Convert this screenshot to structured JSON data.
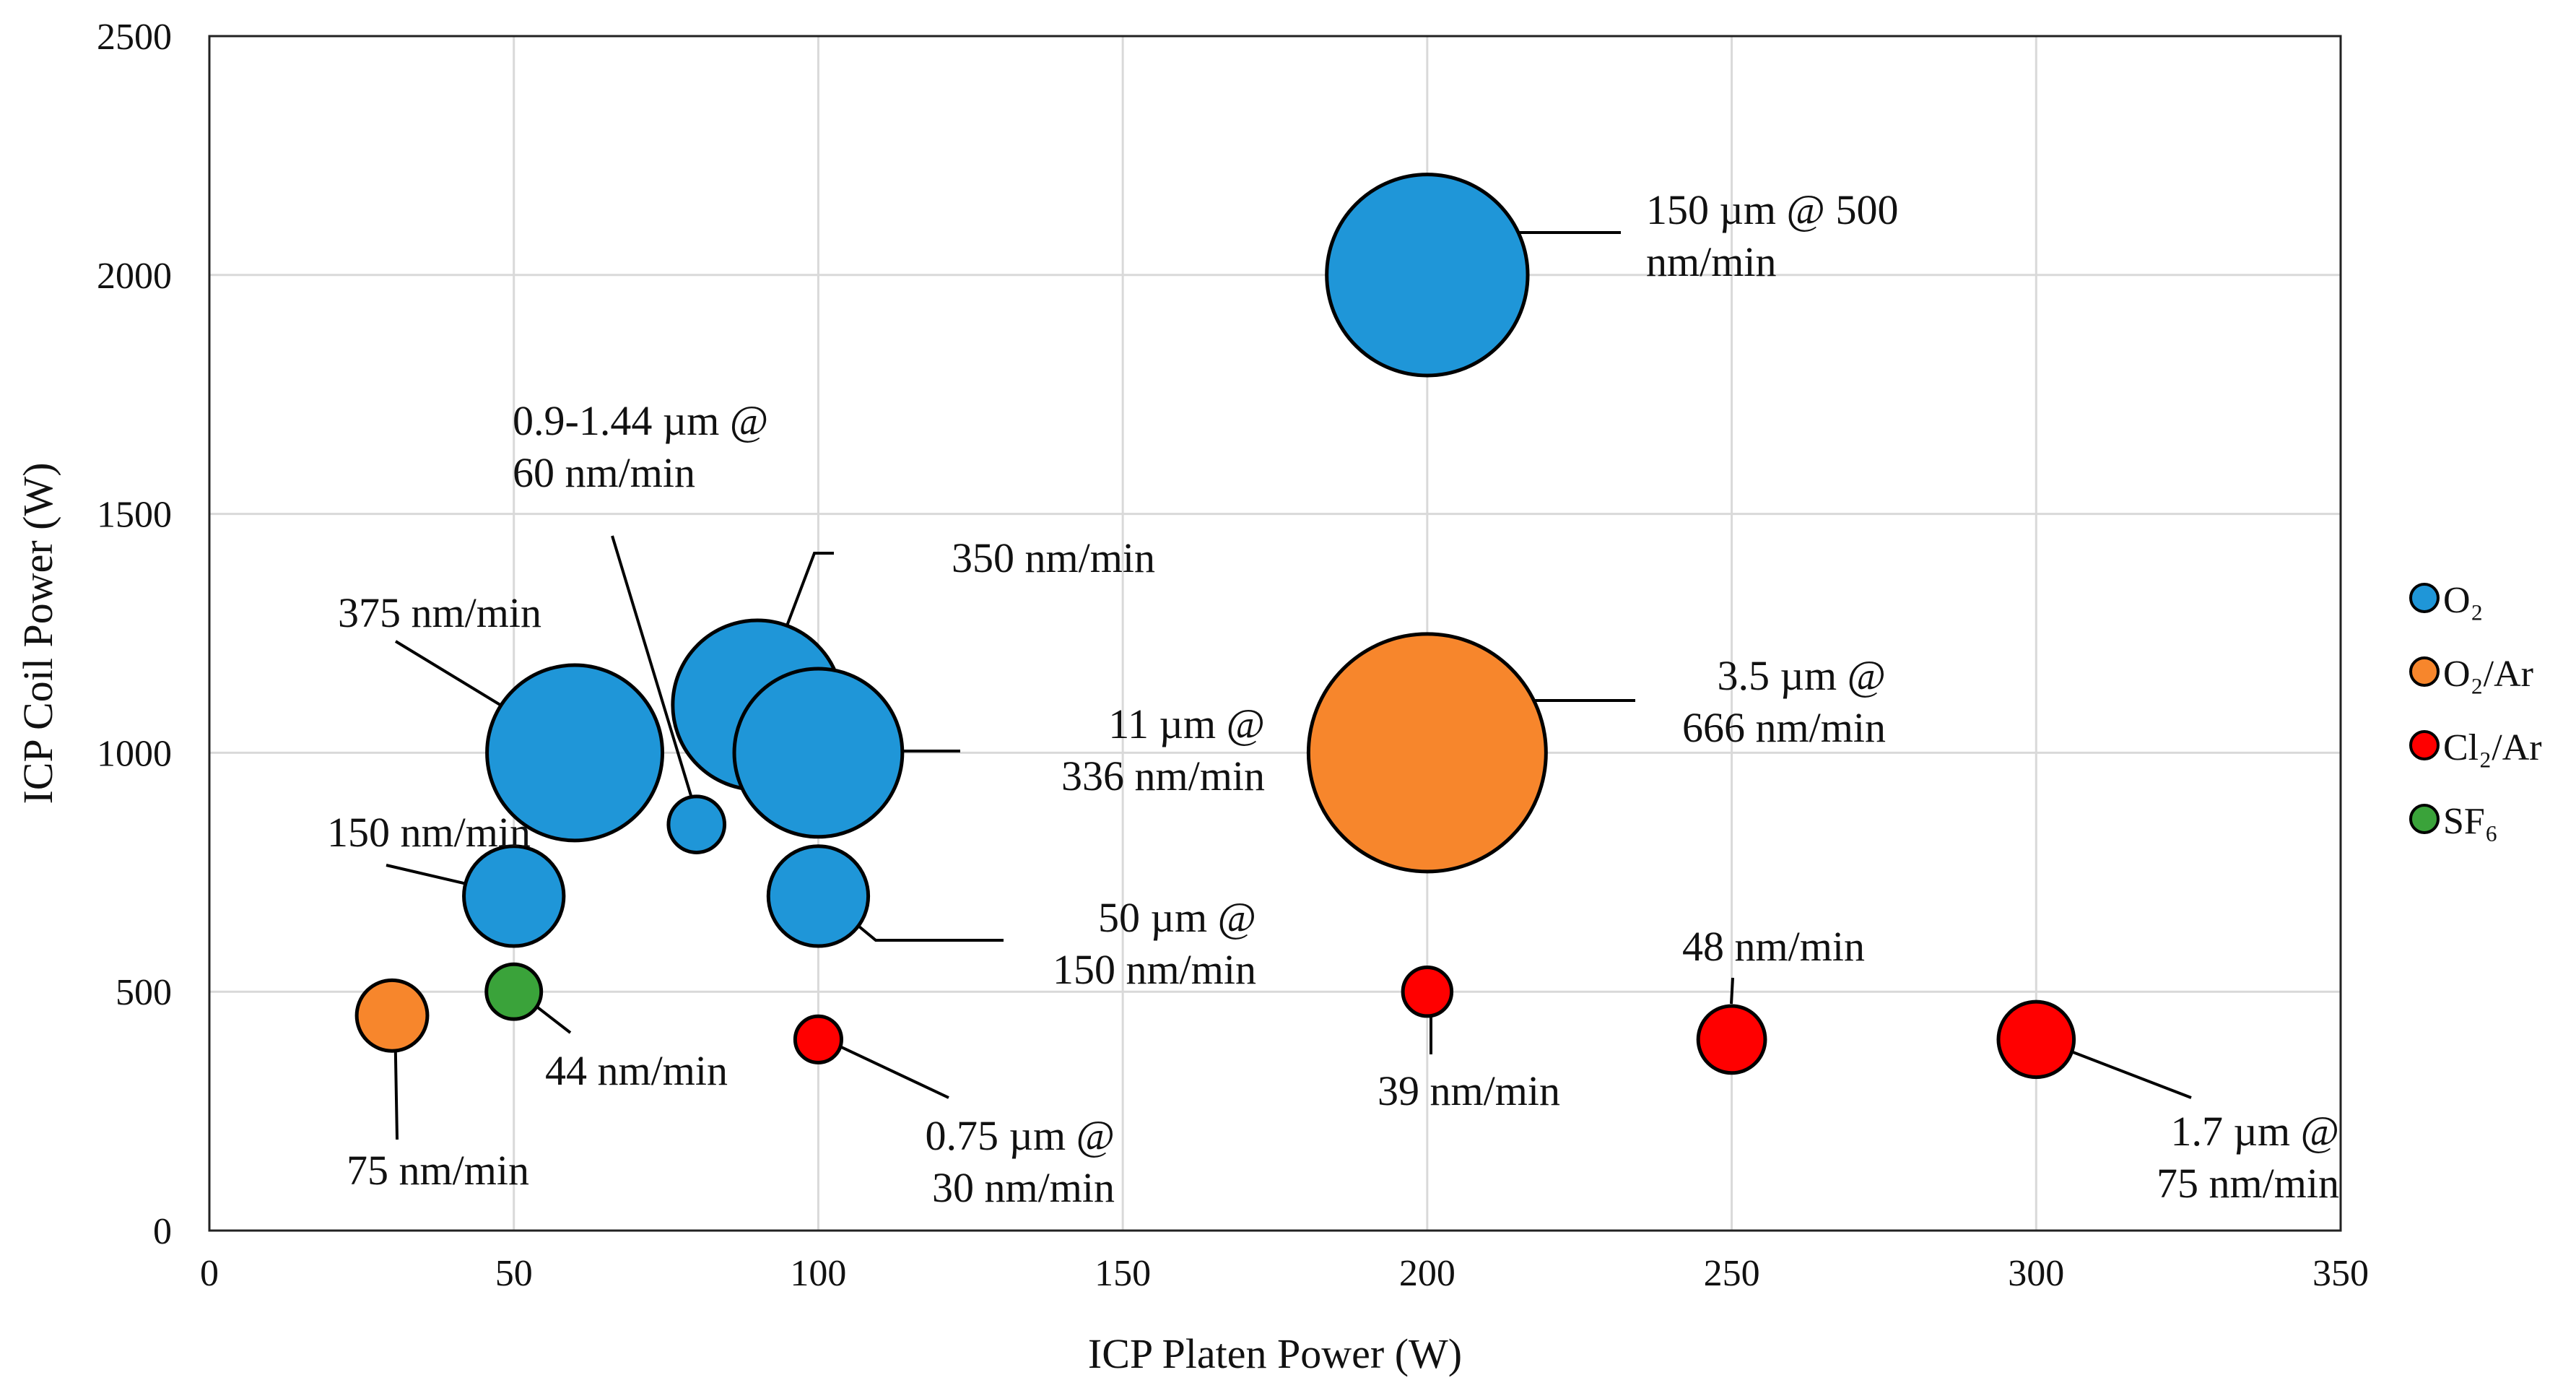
{
  "chart_data": {
    "type": "scatter",
    "subtype": "bubble",
    "title": "",
    "xlabel": "ICP Platen Power (W)",
    "ylabel": "ICP Coil Power (W)",
    "xlim": [
      0,
      350
    ],
    "ylim": [
      0,
      2500
    ],
    "xticks": [
      0,
      50,
      100,
      150,
      200,
      250,
      300,
      350
    ],
    "yticks": [
      0,
      500,
      1000,
      1500,
      2000,
      2500
    ],
    "grid": true,
    "legend_position": "right",
    "series": [
      {
        "name": "O₂",
        "color": "#1f96d8",
        "points": [
          {
            "x": 200,
            "y": 2000,
            "r": 0.165,
            "label": [
              "150 µm @ 500",
              "nm/min"
            ]
          },
          {
            "x": 60,
            "y": 1000,
            "r": 0.144,
            "label": [
              "375 nm/min"
            ]
          },
          {
            "x": 90,
            "y": 1100,
            "r": 0.139,
            "label": [
              "350 nm/min"
            ]
          },
          {
            "x": 100,
            "y": 1000,
            "r": 0.138,
            "label": [
              "11 µm @",
              "336 nm/min"
            ]
          },
          {
            "x": 80,
            "y": 850,
            "r": 0.046,
            "label": [
              "0.9-1.44  µm @",
              "60 nm/min"
            ]
          },
          {
            "x": 50,
            "y": 700,
            "r": 0.082,
            "label": [
              "150 nm/min"
            ]
          },
          {
            "x": 100,
            "y": 700,
            "r": 0.082,
            "label": [
              "50 µm @",
              "150 nm/min"
            ]
          }
        ]
      },
      {
        "name": "O₂/Ar",
        "color": "#f7862c",
        "points": [
          {
            "x": 200,
            "y": 1000,
            "r": 0.195,
            "label": [
              "3.5 µm @",
              "666 nm/min"
            ]
          },
          {
            "x": 30,
            "y": 450,
            "r": 0.058,
            "label": [
              "75 nm/min"
            ]
          }
        ]
      },
      {
        "name": "Cl₂/Ar",
        "color": "#ff0000",
        "points": [
          {
            "x": 200,
            "y": 500,
            "r": 0.04,
            "label": [
              "39 nm/min"
            ]
          },
          {
            "x": 100,
            "y": 400,
            "r": 0.038,
            "label": [
              "0.75 µm @",
              "30 nm/min"
            ]
          },
          {
            "x": 250,
            "y": 400,
            "r": 0.055,
            "label": [
              "48 nm/min"
            ]
          },
          {
            "x": 300,
            "y": 400,
            "r": 0.062,
            "label": [
              "1.7 µm @",
              "75 nm/min"
            ]
          }
        ]
      },
      {
        "name": "SF₆",
        "color": "#3aa33a",
        "points": [
          {
            "x": 50,
            "y": 500,
            "r": 0.045,
            "label": [
              "44 nm/min"
            ]
          }
        ]
      }
    ]
  }
}
